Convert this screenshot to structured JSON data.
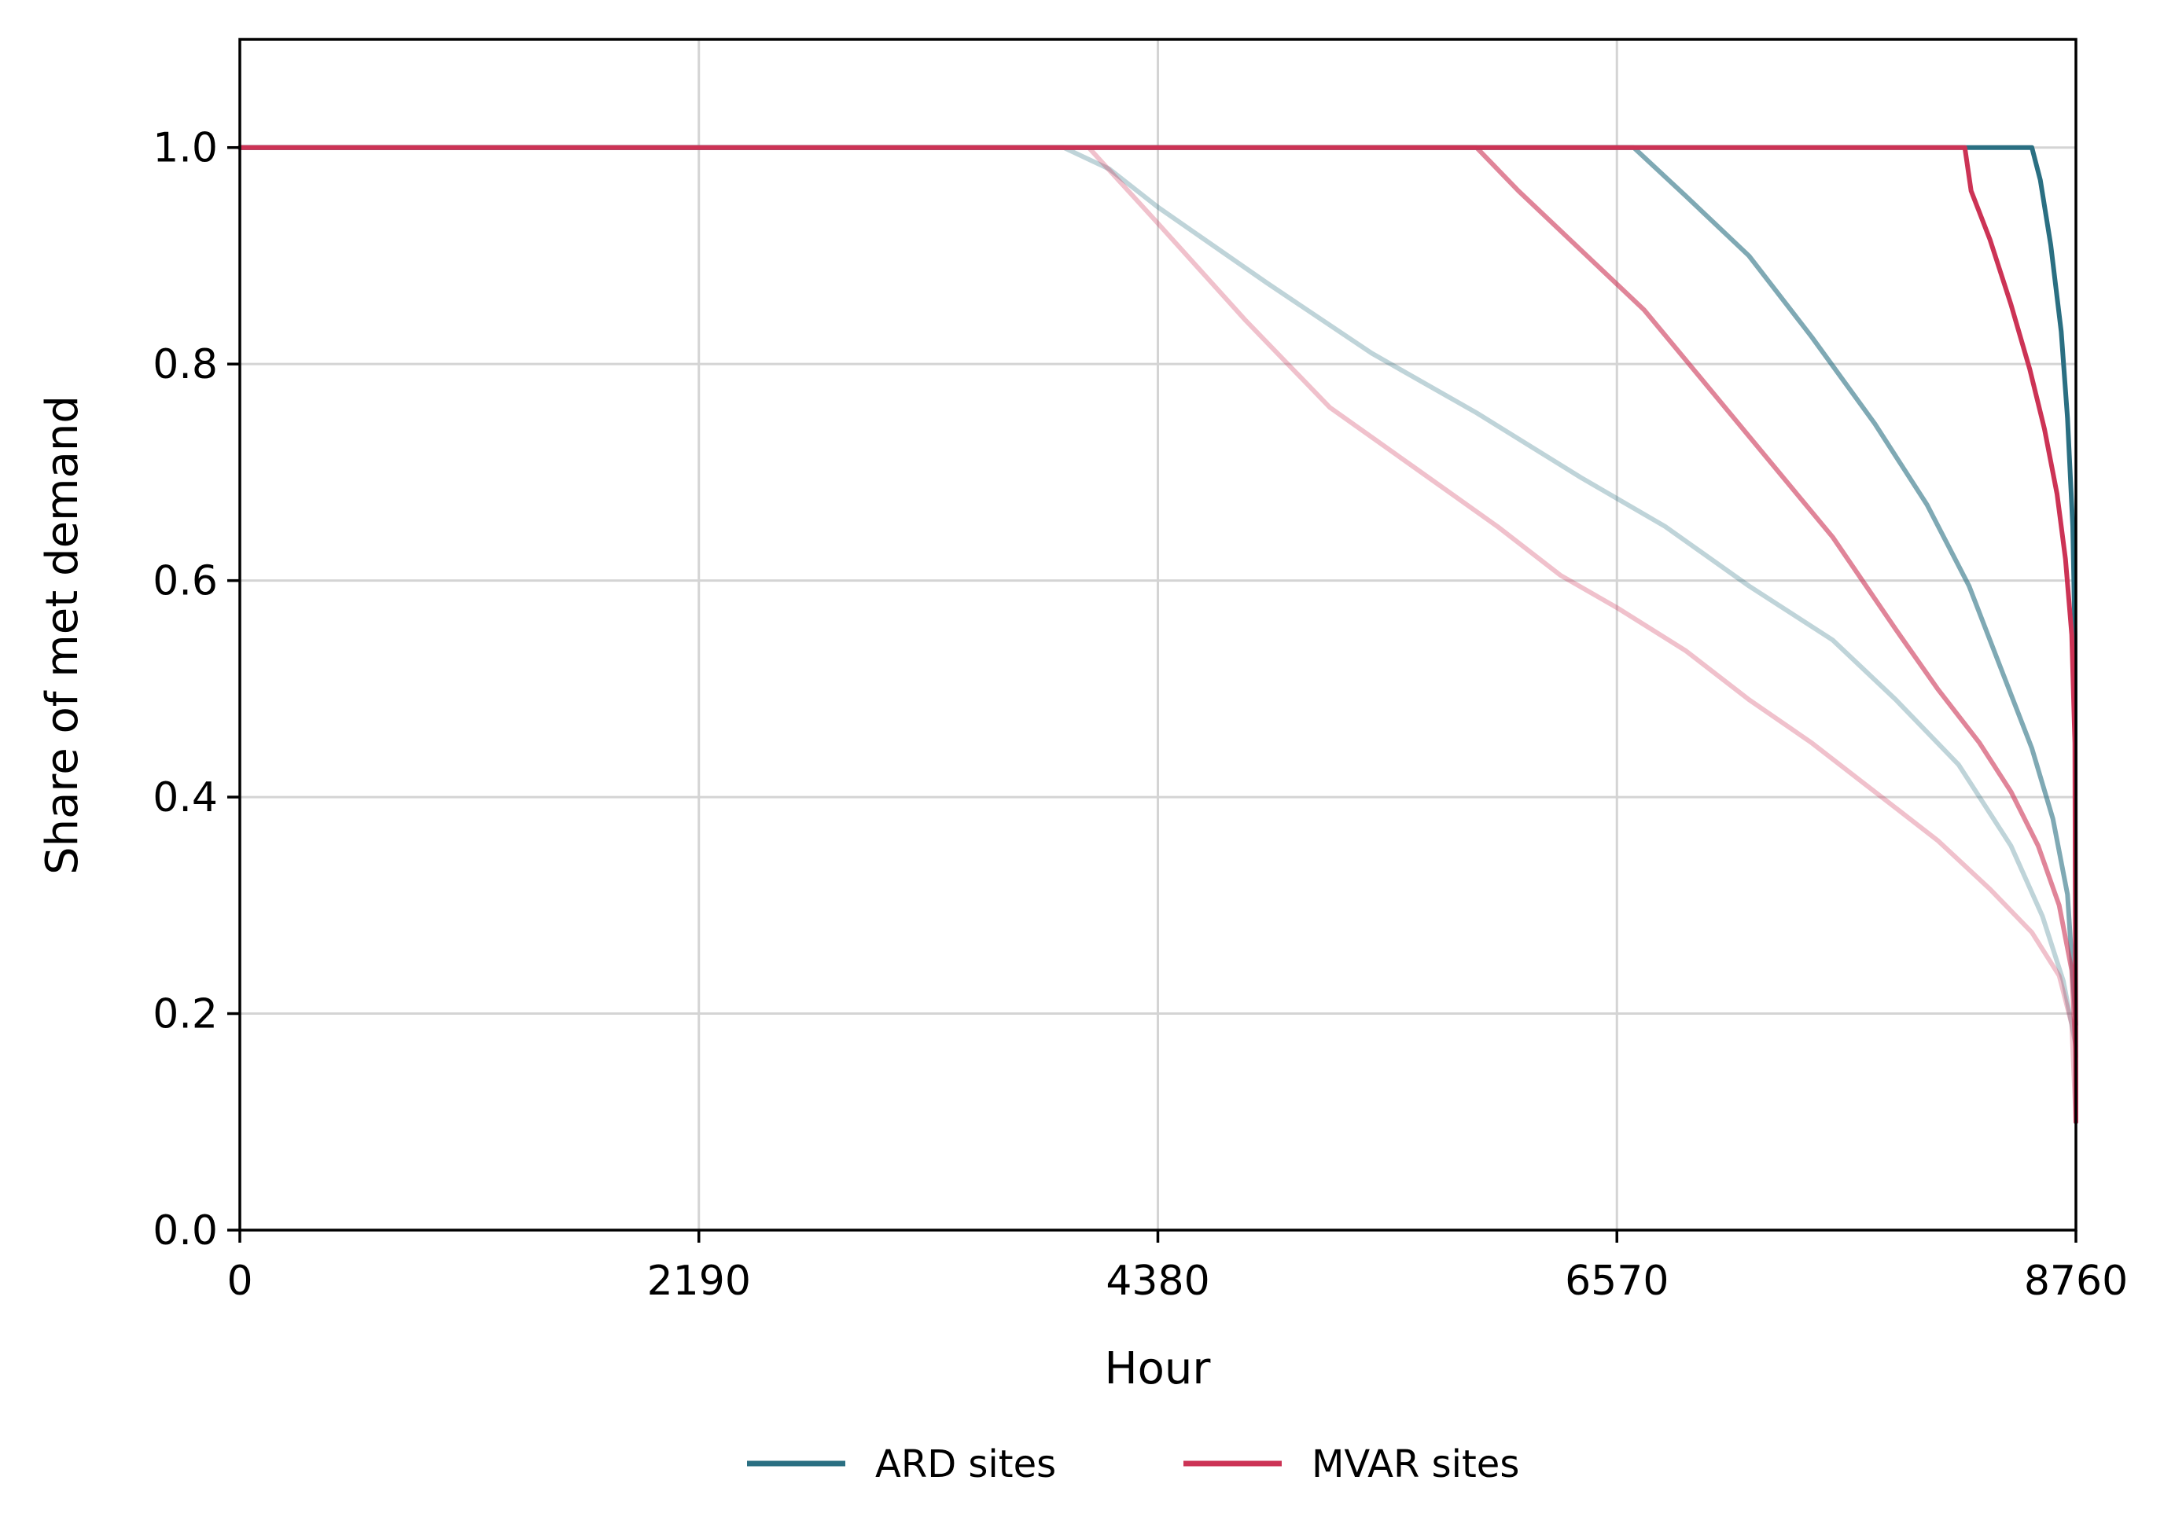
{
  "chart_data": {
    "type": "line",
    "title": "",
    "xlabel": "Hour",
    "ylabel": "Share of met demand",
    "xlim": [
      0,
      8760
    ],
    "ylim": [
      0,
      1.1
    ],
    "xticks": [
      0,
      2190,
      4380,
      6570,
      8760
    ],
    "xtick_labels": [
      "0",
      "2190",
      "4380",
      "6570",
      "8760"
    ],
    "yticks": [
      0.0,
      0.2,
      0.4,
      0.6,
      0.8,
      1.0
    ],
    "ytick_labels": [
      "0.0",
      "0.2",
      "0.4",
      "0.6",
      "0.8",
      "1.0"
    ],
    "grid": true,
    "legend_position": "bottom-center",
    "legend": [
      {
        "label": "ARD sites",
        "color": "#2a6f82"
      },
      {
        "label": "MVAR sites",
        "color": "#cc3355"
      }
    ],
    "series": [
      {
        "group": "ARD sites",
        "color": "#2a6f82",
        "opacity": 0.3,
        "points": [
          [
            0,
            1.0
          ],
          [
            3930,
            1.0
          ],
          [
            4150,
            0.98
          ],
          [
            4380,
            0.945
          ],
          [
            4900,
            0.875
          ],
          [
            5400,
            0.81
          ],
          [
            5900,
            0.755
          ],
          [
            6400,
            0.695
          ],
          [
            6800,
            0.65
          ],
          [
            7200,
            0.595
          ],
          [
            7600,
            0.545
          ],
          [
            7900,
            0.49
          ],
          [
            8200,
            0.43
          ],
          [
            8450,
            0.355
          ],
          [
            8600,
            0.29
          ],
          [
            8700,
            0.23
          ],
          [
            8760,
            0.17
          ]
        ]
      },
      {
        "group": "ARD sites",
        "color": "#2a6f82",
        "opacity": 0.6,
        "points": [
          [
            0,
            1.0
          ],
          [
            6650,
            1.0
          ],
          [
            6900,
            0.955
          ],
          [
            7200,
            0.9
          ],
          [
            7500,
            0.825
          ],
          [
            7800,
            0.745
          ],
          [
            8050,
            0.67
          ],
          [
            8250,
            0.595
          ],
          [
            8400,
            0.52
          ],
          [
            8550,
            0.445
          ],
          [
            8650,
            0.38
          ],
          [
            8720,
            0.31
          ],
          [
            8760,
            0.19
          ]
        ]
      },
      {
        "group": "ARD sites",
        "color": "#2a6f82",
        "opacity": 1.0,
        "points": [
          [
            0,
            1.0
          ],
          [
            8550,
            1.0
          ],
          [
            8590,
            0.97
          ],
          [
            8640,
            0.91
          ],
          [
            8690,
            0.83
          ],
          [
            8720,
            0.75
          ],
          [
            8745,
            0.65
          ],
          [
            8755,
            0.55
          ],
          [
            8760,
            0.1
          ]
        ]
      },
      {
        "group": "MVAR sites",
        "color": "#cc3355",
        "opacity": 0.3,
        "points": [
          [
            0,
            1.0
          ],
          [
            4050,
            1.0
          ],
          [
            4380,
            0.93
          ],
          [
            4800,
            0.84
          ],
          [
            5200,
            0.76
          ],
          [
            5600,
            0.705
          ],
          [
            6000,
            0.65
          ],
          [
            6300,
            0.605
          ],
          [
            6570,
            0.575
          ],
          [
            6900,
            0.535
          ],
          [
            7200,
            0.49
          ],
          [
            7500,
            0.45
          ],
          [
            7800,
            0.405
          ],
          [
            8100,
            0.36
          ],
          [
            8350,
            0.315
          ],
          [
            8550,
            0.275
          ],
          [
            8680,
            0.235
          ],
          [
            8740,
            0.19
          ],
          [
            8760,
            0.1
          ]
        ]
      },
      {
        "group": "MVAR sites",
        "color": "#cc3355",
        "opacity": 0.6,
        "points": [
          [
            0,
            1.0
          ],
          [
            5900,
            1.0
          ],
          [
            6100,
            0.96
          ],
          [
            6400,
            0.905
          ],
          [
            6700,
            0.85
          ],
          [
            7000,
            0.78
          ],
          [
            7300,
            0.71
          ],
          [
            7600,
            0.64
          ],
          [
            7900,
            0.555
          ],
          [
            8100,
            0.5
          ],
          [
            8300,
            0.45
          ],
          [
            8450,
            0.405
          ],
          [
            8580,
            0.355
          ],
          [
            8680,
            0.3
          ],
          [
            8740,
            0.24
          ],
          [
            8760,
            0.16
          ]
        ]
      },
      {
        "group": "MVAR sites",
        "color": "#cc3355",
        "opacity": 1.0,
        "points": [
          [
            0,
            1.0
          ],
          [
            8230,
            1.0
          ],
          [
            8260,
            0.96
          ],
          [
            8350,
            0.915
          ],
          [
            8450,
            0.855
          ],
          [
            8540,
            0.795
          ],
          [
            8610,
            0.74
          ],
          [
            8670,
            0.68
          ],
          [
            8710,
            0.62
          ],
          [
            8740,
            0.55
          ],
          [
            8755,
            0.45
          ],
          [
            8760,
            0.1
          ]
        ]
      }
    ]
  }
}
